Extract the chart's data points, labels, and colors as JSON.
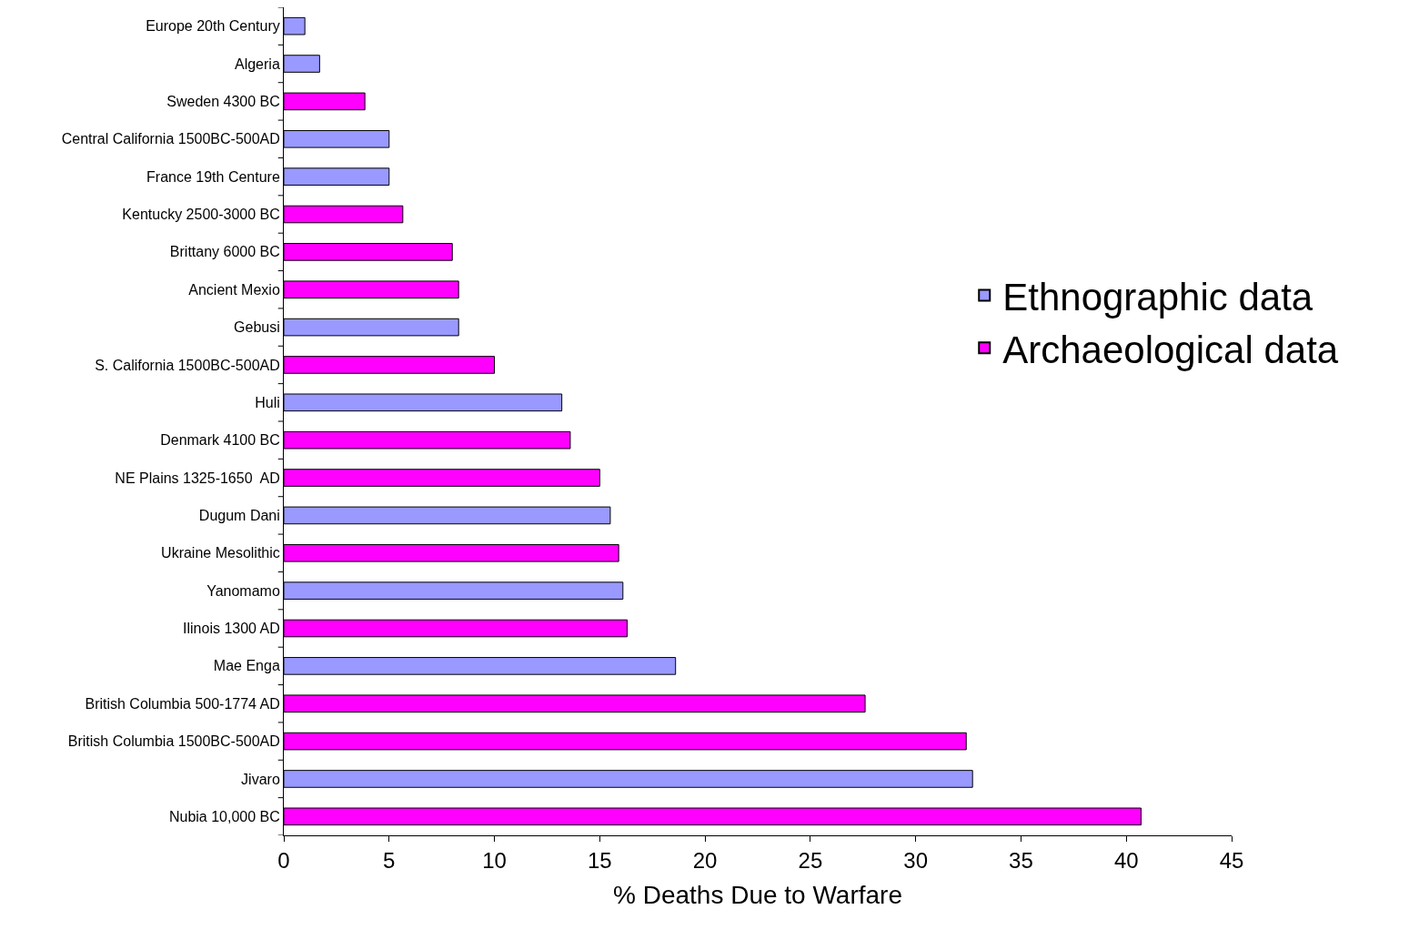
{
  "chart_data": {
    "type": "bar",
    "orientation": "horizontal",
    "xlabel": "% Deaths Due to Warfare",
    "categories": [
      "Europe 20th Century",
      "Algeria",
      "Sweden 4300 BC",
      "Central California 1500BC-500AD",
      "France 19th Centure",
      "Kentucky 2500-3000 BC",
      "Brittany 6000 BC",
      "Ancient Mexio",
      "Gebusi",
      "S. California 1500BC-500AD",
      "Huli",
      "Denmark 4100 BC",
      "NE Plains 1325-1650  AD",
      "Dugum Dani",
      "Ukraine Mesolithic",
      "Yanomamo",
      "Ilinois 1300 AD",
      "Mae Enga",
      "British Columbia 500-1774 AD",
      "British Columbia 1500BC-500AD",
      "Jivaro",
      "Nubia 10,000 BC"
    ],
    "series": [
      {
        "name": "Ethnographic data",
        "color": "#9999ff",
        "values": [
          1.0,
          1.7,
          null,
          5.0,
          5.0,
          null,
          null,
          null,
          8.3,
          null,
          13.2,
          null,
          null,
          15.5,
          null,
          16.1,
          null,
          18.6,
          null,
          null,
          32.7,
          null
        ]
      },
      {
        "name": "Archaeological data",
        "color": "#ff00ff",
        "values": [
          null,
          null,
          3.85,
          null,
          null,
          5.65,
          8.0,
          8.3,
          null,
          10.0,
          null,
          13.6,
          15.0,
          null,
          15.9,
          null,
          16.3,
          null,
          27.6,
          32.4,
          null,
          40.7
        ]
      }
    ],
    "xlim": [
      0,
      45
    ],
    "xticks": [
      0,
      5,
      10,
      15,
      20,
      25,
      30,
      35,
      40,
      45
    ],
    "legend": "right"
  }
}
